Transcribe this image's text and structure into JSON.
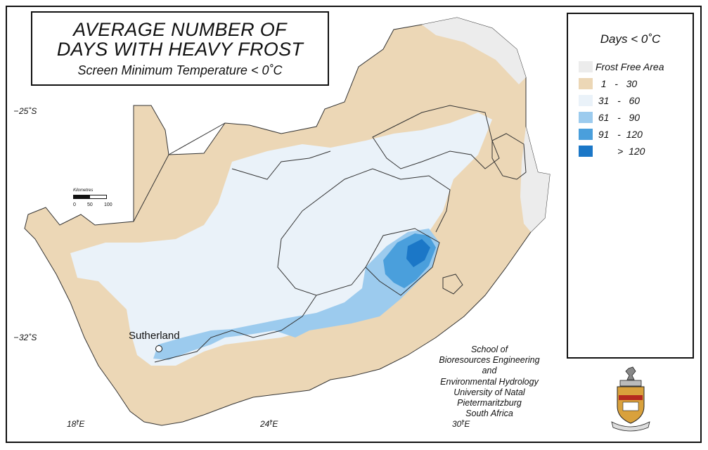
{
  "title": {
    "line1": "AVERAGE NUMBER OF",
    "line2": "DAYS WITH HEAVY FROST",
    "subtitle": "Screen Minimum Temperature < 0˚C"
  },
  "graticule": {
    "lat_labels": [
      "25˚S",
      "32˚S"
    ],
    "lon_labels": [
      "18˚E",
      "24˚E",
      "30˚E"
    ]
  },
  "legend": {
    "title": "Days < 0˚C",
    "items": [
      {
        "label": "Frost Free Area",
        "color": "#ececec"
      },
      {
        "label": "  1   -   30",
        "color": "#ecd7b6"
      },
      {
        "label": " 31   -   60",
        "color": "#eaf2f9"
      },
      {
        "label": " 61   -   90",
        "color": "#9ccbee"
      },
      {
        "label": " 91   -  120",
        "color": "#4a9fdc"
      },
      {
        "label": "        >  120",
        "color": "#1b77c7"
      }
    ]
  },
  "station": {
    "label": "Sutherland"
  },
  "scale_bar": {
    "title": "Kilometres",
    "ticks": [
      "0",
      "50",
      "100"
    ]
  },
  "institution": {
    "lines": [
      "School of",
      "Bioresources Engineering",
      "and",
      "Environmental Hydrology",
      "University of Natal",
      "Pietermaritzburg",
      "South Africa"
    ]
  },
  "colors": {
    "land_frost_free": "#ececec",
    "zone_1_30": "#ecd7b6",
    "zone_31_60": "#eaf2f9",
    "zone_61_90": "#9ccbee",
    "zone_91_120": "#4a9fdc",
    "border": "#333333"
  }
}
